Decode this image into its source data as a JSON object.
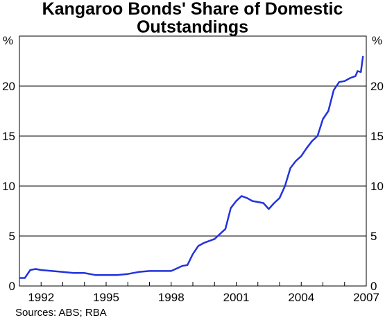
{
  "chart_data": {
    "type": "line",
    "title_line1": "Kangaroo Bonds' Share of Domestic",
    "title_line2": "Outstandings",
    "ylabel_left": "%",
    "ylabel_right": "%",
    "source": "Sources: ABS; RBA",
    "xlim": [
      1991.0,
      2007.0
    ],
    "ylim": [
      0,
      25
    ],
    "y_ticks": [
      0,
      5,
      10,
      15,
      20
    ],
    "x_ticks": [
      1992,
      1995,
      1998,
      2001,
      2004,
      2007
    ],
    "grid": true,
    "line_color": "#2233dd",
    "series": [
      {
        "x": [
          1991.0,
          1991.25,
          1991.5,
          1991.75,
          1992.0,
          1992.5,
          1993.0,
          1993.5,
          1994.0,
          1994.5,
          1995.0,
          1995.5,
          1996.0,
          1996.5,
          1997.0,
          1997.5,
          1998.0,
          1998.5,
          1998.75,
          1999.0,
          1999.25,
          1999.5,
          1999.75,
          2000.0,
          2000.25,
          2000.5,
          2000.75,
          2001.0,
          2001.25,
          2001.5,
          2001.75,
          2002.0,
          2002.25,
          2002.5,
          2002.75,
          2003.0,
          2003.25,
          2003.5,
          2003.75,
          2004.0,
          2004.25,
          2004.5,
          2004.75,
          2005.0,
          2005.25,
          2005.5,
          2005.75,
          2006.0,
          2006.25,
          2006.5,
          2006.6,
          2006.75,
          2006.85
        ],
        "y": [
          0.8,
          0.8,
          1.6,
          1.7,
          1.6,
          1.5,
          1.4,
          1.3,
          1.3,
          1.1,
          1.1,
          1.1,
          1.2,
          1.4,
          1.5,
          1.5,
          1.5,
          2.0,
          2.1,
          3.2,
          4.0,
          4.3,
          4.5,
          4.7,
          5.2,
          5.7,
          7.8,
          8.5,
          9.0,
          8.8,
          8.5,
          8.4,
          8.3,
          7.7,
          8.3,
          8.8,
          10.0,
          11.8,
          12.5,
          13.0,
          13.8,
          14.5,
          15.0,
          16.7,
          17.5,
          19.6,
          20.4,
          20.5,
          20.8,
          21.0,
          21.5,
          21.4,
          23.0
        ]
      }
    ]
  }
}
